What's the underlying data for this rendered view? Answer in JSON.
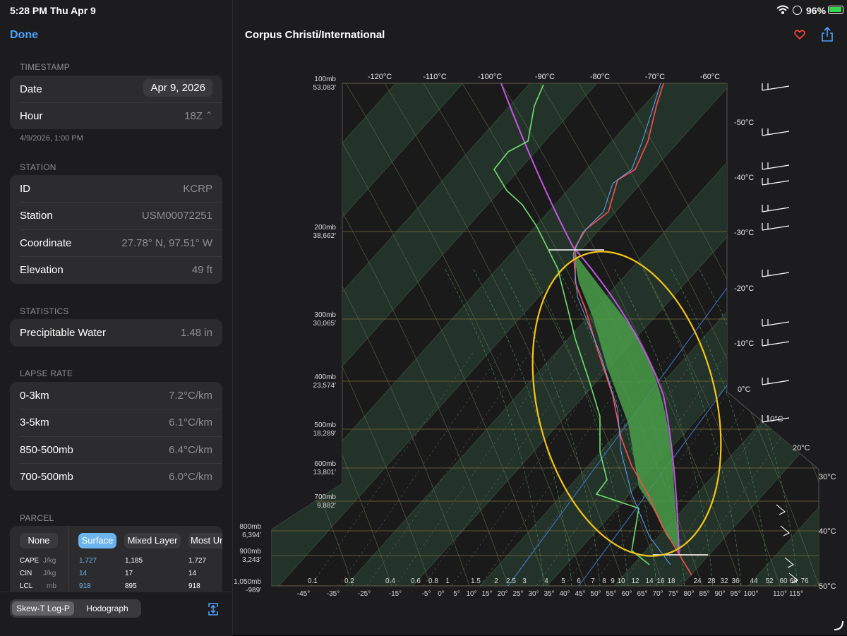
{
  "status": {
    "time": "5:28 PM",
    "date": "Thu Apr 9",
    "battery": "96%"
  },
  "sidebar": {
    "done_label": "Done",
    "timestamp": {
      "header": "TIMESTAMP",
      "date_label": "Date",
      "date_value": "Apr 9, 2026",
      "hour_label": "Hour",
      "hour_value": "18Z",
      "note": "4/9/2026, 1:00 PM"
    },
    "station": {
      "header": "STATION",
      "rows": [
        {
          "label": "ID",
          "value": "KCRP"
        },
        {
          "label": "Station",
          "value": "USM00072251"
        },
        {
          "label": "Coordinate",
          "value": "27.78° N, 97.51° W"
        },
        {
          "label": "Elevation",
          "value": "49 ft"
        }
      ]
    },
    "statistics": {
      "header": "STATISTICS",
      "rows": [
        {
          "label": "Precipitable Water",
          "value": "1.48 in"
        }
      ]
    },
    "lapse_rate": {
      "header": "LAPSE RATE",
      "rows": [
        {
          "label": "0-3km",
          "value": "7.2°C/km"
        },
        {
          "label": "3-5km",
          "value": "6.1°C/km"
        },
        {
          "label": "850-500mb",
          "value": "6.4°C/km"
        },
        {
          "label": "700-500mb",
          "value": "6.0°C/km"
        }
      ]
    },
    "parcel": {
      "header": "PARCEL",
      "none_label": "None",
      "options": [
        "Surface",
        "Mixed Layer",
        "Most Un"
      ],
      "selected": "Surface",
      "rows": [
        {
          "label": "CAPE",
          "unit": "J/kg",
          "values": [
            "1,727",
            "1,185",
            "1,727"
          ]
        },
        {
          "label": "CIN",
          "unit": "J/kg",
          "values": [
            "14",
            "17",
            "14"
          ]
        },
        {
          "label": "LCL",
          "unit": "mb",
          "values": [
            "918",
            "895",
            "918"
          ]
        }
      ]
    },
    "view_tabs": [
      "Skew-T Log-P",
      "Hodograph"
    ],
    "active_tab": "Skew-T Log-P"
  },
  "main": {
    "title": "Corpus Christi/International",
    "accent": "#ff453a",
    "link_color": "#4aa3ff"
  },
  "chart_data": {
    "type": "line",
    "title": "",
    "chart_kind": "skew-t log-p",
    "top_temp_labels": [
      "-120°C",
      "-110°C",
      "-100°C",
      "-90°C",
      "-80°C",
      "-70°C",
      "-60°C"
    ],
    "right_temp_labels": [
      "-50°C",
      "-40°C",
      "-30°C",
      "-20°C",
      "-10°C",
      "0°C",
      "10°C",
      "20°C",
      "30°C",
      "40°C",
      "50°C"
    ],
    "pressure_levels": [
      {
        "p": "100mb",
        "h": "53,083′"
      },
      {
        "p": "200mb",
        "h": "38,662′"
      },
      {
        "p": "300mb",
        "h": "30,065′"
      },
      {
        "p": "400mb",
        "h": "23,574′"
      },
      {
        "p": "500mb",
        "h": "18,289′"
      },
      {
        "p": "600mb",
        "h": "13,801′"
      },
      {
        "p": "700mb",
        "h": "9,882′"
      },
      {
        "p": "800mb",
        "h": "6,394′"
      },
      {
        "p": "900mb",
        "h": "3,243′"
      },
      {
        "p": "1,050mb",
        "h": "-989′"
      }
    ],
    "mixing_ratio_labels": [
      "0.1",
      "0.2",
      "0.4",
      "0.6",
      "0.8",
      "1",
      "1.5",
      "2",
      "2.5",
      "3",
      "4",
      "5",
      "6",
      "7",
      "8",
      "9",
      "10",
      "12",
      "14",
      "16",
      "18",
      "24",
      "28",
      "32",
      "36",
      "44",
      "52",
      "60",
      "68",
      "76"
    ],
    "bottom_temp_labels": [
      "-45°",
      "-35°",
      "-25°",
      "-15°",
      "-5°",
      "0°",
      "5°",
      "10°",
      "15°",
      "20°",
      "25°",
      "30°",
      "35°",
      "40°",
      "45°",
      "50°",
      "55°",
      "60°",
      "65°",
      "70°",
      "75°",
      "80°",
      "85°",
      "90°",
      "95°",
      "100°",
      "110°",
      "115°"
    ],
    "series": []
  }
}
